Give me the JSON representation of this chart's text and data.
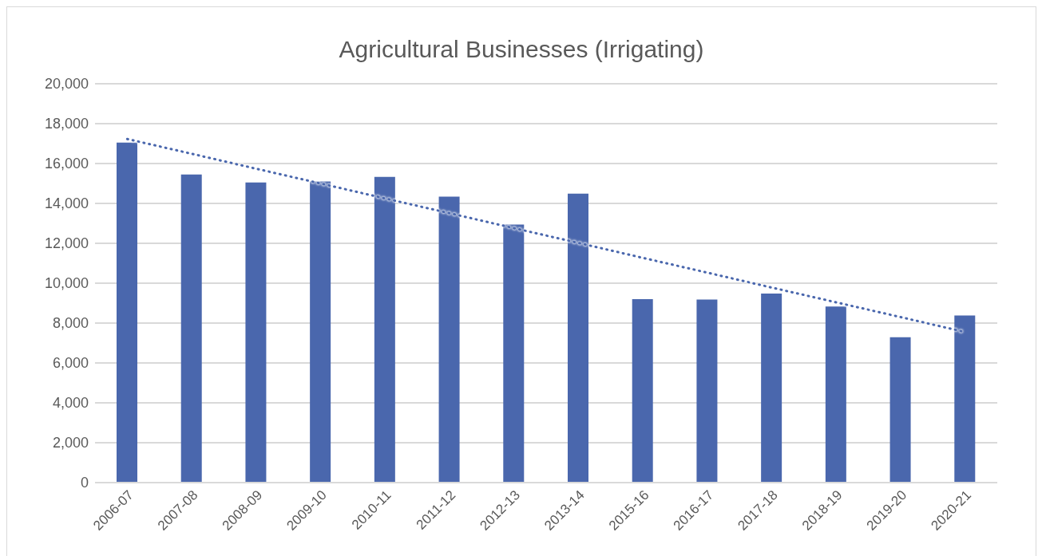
{
  "chart_data": {
    "type": "bar",
    "title": "Agricultural Businesses (Irrigating)",
    "categories": [
      "2006-07",
      "2007-08",
      "2008-09",
      "2009-10",
      "2010-11",
      "2011-12",
      "2012-13",
      "2013-14",
      "2015-16",
      "2016-17",
      "2017-18",
      "2018-19",
      "2019-20",
      "2020-21"
    ],
    "series": [
      {
        "color": "#4a67ad",
        "values": [
          17050,
          15450,
          15050,
          15100,
          15330,
          14340,
          12940,
          14490,
          9200,
          9180,
          9480,
          8830,
          7290,
          8380
        ]
      },
      {
        "type": "line",
        "color": "#4a67ad",
        "line_style": "dotted",
        "values": [
          17230,
          16490,
          15740,
          15000,
          14250,
          13510,
          12760,
          12020,
          11270,
          10530,
          9780,
          9040,
          8300,
          7550
        ]
      }
    ],
    "ylim": [
      0,
      20000
    ],
    "yticks": [
      {
        "value": 0,
        "label": "0"
      },
      {
        "value": 2000,
        "label": "2,000"
      },
      {
        "value": 4000,
        "label": "4,000"
      },
      {
        "value": 6000,
        "label": "6,000"
      },
      {
        "value": 8000,
        "label": "8,000"
      },
      {
        "value": 10000,
        "label": "10,000"
      },
      {
        "value": 12000,
        "label": "12,000"
      },
      {
        "value": 14000,
        "label": "14,000"
      },
      {
        "value": 16000,
        "label": "16,000"
      },
      {
        "value": 18000,
        "label": "18,000"
      },
      {
        "value": 20000,
        "label": "20,000"
      }
    ],
    "grid": "y",
    "legend": false
  }
}
